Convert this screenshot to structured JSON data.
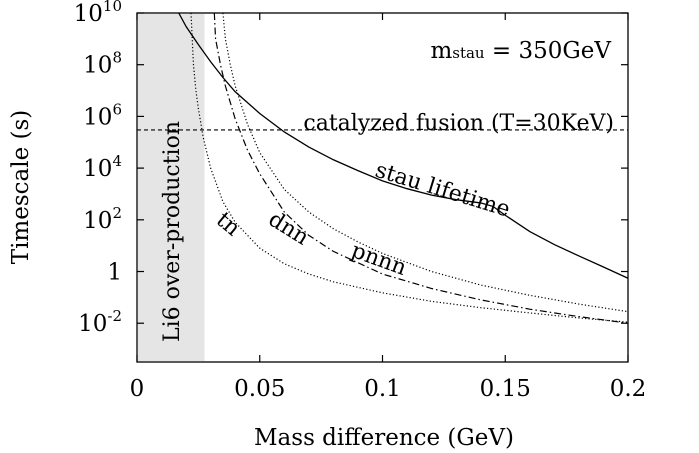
{
  "chart_data": {
    "type": "line",
    "title": "",
    "xlabel": "Mass difference (GeV)",
    "ylabel": "Timescale (s)",
    "xlim": [
      0,
      0.2
    ],
    "ylim_log10": [
      -3.5,
      10
    ],
    "yscale": "log",
    "grid": false,
    "legend": "none",
    "x_ticks": [
      {
        "value": 0,
        "label": "0"
      },
      {
        "value": 0.05,
        "label": "0.05"
      },
      {
        "value": 0.1,
        "label": "0.1"
      },
      {
        "value": 0.15,
        "label": "0.15"
      },
      {
        "value": 0.2,
        "label": "0.2"
      }
    ],
    "y_ticks": [
      {
        "exp": 10,
        "base": "10",
        "sup": "10"
      },
      {
        "exp": 8,
        "base": "10",
        "sup": "8"
      },
      {
        "exp": 6,
        "base": "10",
        "sup": "6"
      },
      {
        "exp": 4,
        "base": "10",
        "sup": "4"
      },
      {
        "exp": 2,
        "base": "10",
        "sup": "2"
      },
      {
        "exp": 0,
        "base": "1",
        "sup": ""
      },
      {
        "exp": -2,
        "base": "10",
        "sup": "-2"
      }
    ],
    "annotation_mass": {
      "prefix": "m",
      "sub": "stau",
      "suffix": " = 350GeV"
    },
    "shaded_region": {
      "label": "Li6 over-production",
      "x": [
        0,
        0.0275
      ],
      "color": "#e5e5e5"
    },
    "horizontal_line": {
      "label": "catalyzed fusion (T=30KeV)",
      "y": 300000
    },
    "series": [
      {
        "name": "stau lifetime",
        "style": "solid",
        "x": [
          0.017,
          0.02,
          0.025,
          0.03,
          0.035,
          0.04,
          0.05,
          0.06,
          0.07,
          0.08,
          0.09,
          0.1,
          0.11,
          0.12,
          0.13,
          0.14,
          0.145,
          0.15,
          0.16,
          0.17,
          0.18,
          0.19,
          0.2
        ],
        "y": [
          10000000000.0,
          3000000000.0,
          600000000.0,
          130000000.0,
          32000000.0,
          9000000.0,
          1300000.0,
          250000.0,
          65000.0,
          21000.0,
          8000.0,
          3200.0,
          1600.0,
          900,
          600,
          450,
          330,
          150,
          35,
          11,
          4,
          1.5,
          0.55
        ]
      },
      {
        "name": "pnnn",
        "style": "dotted",
        "x": [
          0.035,
          0.036,
          0.038,
          0.04,
          0.045,
          0.05,
          0.06,
          0.07,
          0.08,
          0.09,
          0.1,
          0.12,
          0.14,
          0.16,
          0.18,
          0.2
        ],
        "y": [
          10000000000.0,
          1000000000.0,
          100000000.0,
          15000000.0,
          500000.0,
          40000.0,
          1500.0,
          200,
          45,
          14,
          5,
          1,
          0.3,
          0.12,
          0.055,
          0.028
        ]
      },
      {
        "name": "dnn",
        "style": "dashdot",
        "x": [
          0.0315,
          0.032,
          0.034,
          0.036,
          0.04,
          0.045,
          0.05,
          0.06,
          0.07,
          0.08,
          0.1,
          0.12,
          0.14,
          0.16,
          0.18,
          0.2
        ],
        "y": [
          10000000000.0,
          1000000000.0,
          100000000.0,
          15000000.0,
          800000.0,
          50000.0,
          6000.0,
          200,
          25,
          6,
          0.8,
          0.22,
          0.08,
          0.035,
          0.018,
          0.01
        ]
      },
      {
        "name": "tn",
        "style": "dotted",
        "x": [
          0.022,
          0.0225,
          0.023,
          0.024,
          0.025,
          0.027,
          0.03,
          0.035,
          0.04,
          0.05,
          0.06,
          0.07,
          0.08,
          0.1,
          0.12,
          0.14,
          0.16,
          0.18,
          0.2
        ],
        "y": [
          10000000000.0,
          1000000000.0,
          100000000.0,
          10000000.0,
          2000000.0,
          150000.0,
          10000.0,
          500,
          80,
          8,
          2,
          0.8,
          0.4,
          0.15,
          0.07,
          0.04,
          0.025,
          0.016,
          0.011
        ]
      }
    ]
  }
}
